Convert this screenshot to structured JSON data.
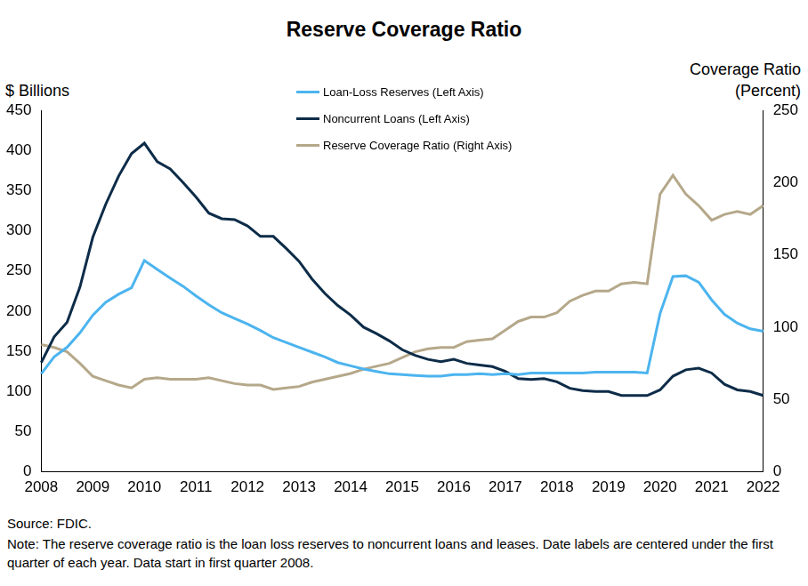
{
  "chart_data": {
    "type": "line",
    "title": "Reserve Coverage Ratio",
    "y_label": "$ Billions",
    "y2_label": "Coverage Ratio (Percent)",
    "source": "Source: FDIC.",
    "note": "Note: The reserve coverage ratio is the loan loss reserves to noncurrent loans and leases. Date labels are centered under the first quarter of each year. Data start in first quarter 2008.",
    "categories": [
      "2008",
      null,
      null,
      null,
      "2009",
      null,
      null,
      null,
      "2010",
      null,
      null,
      null,
      "2011",
      null,
      null,
      null,
      "2012",
      null,
      null,
      null,
      "2013",
      null,
      null,
      null,
      "2014",
      null,
      null,
      null,
      "2015",
      null,
      null,
      null,
      "2016",
      null,
      null,
      null,
      "2017",
      null,
      null,
      null,
      "2018",
      null,
      null,
      null,
      "2019",
      null,
      null,
      null,
      "2020",
      null,
      null,
      null,
      "2021",
      null,
      null,
      null,
      "2022"
    ],
    "series": [
      {
        "name": "Loan-Loss Reserves (Left Axis)",
        "color": "#4cb4ef",
        "axis": "y",
        "values": [
          122,
          143,
          155,
          173,
          195,
          211,
          221,
          229,
          263,
          252,
          241,
          231,
          219,
          208,
          198,
          191,
          184,
          176,
          167,
          161,
          155,
          149,
          143,
          136,
          132,
          128,
          125,
          122,
          121,
          120,
          119,
          119,
          121,
          121,
          122,
          121,
          122,
          121,
          123,
          123,
          123,
          123,
          123,
          124,
          124,
          124,
          124,
          123,
          197,
          243,
          244,
          236,
          214,
          196,
          185,
          178,
          175
        ]
      },
      {
        "name": "Noncurrent Loans (Left Axis)",
        "color": "#0d2c48",
        "axis": "y",
        "values": [
          136,
          168,
          186,
          230,
          292,
          333,
          368,
          396,
          409,
          386,
          377,
          360,
          342,
          322,
          315,
          314,
          306,
          293,
          293,
          278,
          262,
          240,
          222,
          207,
          195,
          180,
          172,
          163,
          152,
          145,
          140,
          137,
          140,
          135,
          133,
          131,
          125,
          116,
          115,
          116,
          112,
          104,
          101,
          100,
          100,
          95,
          95,
          95,
          102,
          119,
          127,
          129,
          123,
          109,
          102,
          100,
          95
        ]
      },
      {
        "name": "Reserve Coverage Ratio (Right Axis)",
        "color": "#b5a88a",
        "axis": "y2",
        "values": [
          88,
          86,
          83,
          75,
          66,
          63,
          60,
          58,
          64,
          65,
          64,
          64,
          64,
          65,
          63,
          61,
          60,
          60,
          57,
          58,
          59,
          62,
          64,
          66,
          68,
          71,
          73,
          75,
          79,
          83,
          85,
          86,
          86,
          90,
          91,
          92,
          98,
          104,
          107,
          107,
          110,
          118,
          122,
          125,
          125,
          130,
          131,
          130,
          192,
          205,
          192,
          184,
          174,
          178,
          180,
          178,
          184
        ]
      }
    ],
    "ylim": [
      0,
      450
    ],
    "yticks": [
      0,
      50,
      100,
      150,
      200,
      250,
      300,
      350,
      400,
      450
    ],
    "y2lim": [
      0,
      250
    ],
    "y2ticks": [
      0,
      50,
      100,
      150,
      200,
      250
    ],
    "grid": false,
    "legend": "top"
  }
}
